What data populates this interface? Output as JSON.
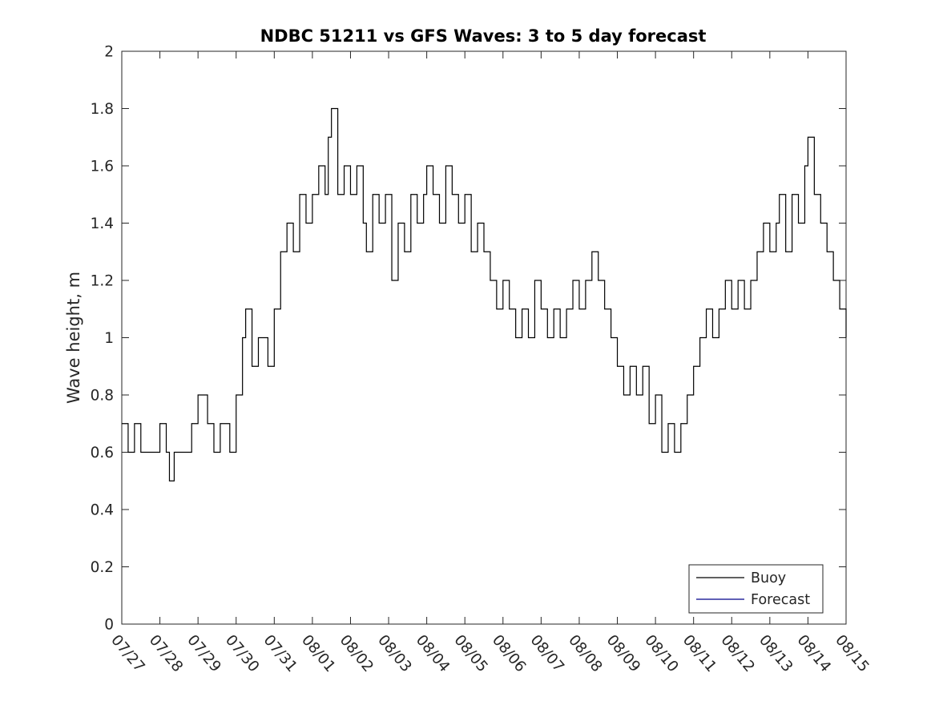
{
  "chart_data": {
    "type": "line",
    "title": "NDBC 51211 vs GFS Waves: 3 to 5 day forecast",
    "xlabel": "",
    "ylabel": "Wave height, m",
    "x_axis": {
      "type": "date",
      "range": [
        "07/27",
        "08/15"
      ],
      "tick_labels": [
        "07/27",
        "07/28",
        "07/29",
        "07/30",
        "07/31",
        "08/01",
        "08/02",
        "08/03",
        "08/04",
        "08/05",
        "08/06",
        "08/07",
        "08/08",
        "08/09",
        "08/10",
        "08/11",
        "08/12",
        "08/13",
        "08/14",
        "08/15"
      ]
    },
    "y_axis": {
      "range": [
        0,
        2
      ],
      "tick_values": [
        0,
        0.2,
        0.4,
        0.6,
        0.8,
        1,
        1.2,
        1.4,
        1.6,
        1.8,
        2
      ],
      "tick_labels": [
        "0",
        "0.2",
        "0.4",
        "0.6",
        "0.8",
        "1",
        "1.2",
        "1.4",
        "1.6",
        "1.8",
        "2"
      ]
    },
    "grid": false,
    "legend_position": "bottom-right",
    "series": [
      {
        "name": "Buoy",
        "color": "#000000",
        "points": [
          [
            "07/27 00:00",
            0.7
          ],
          [
            "07/27 04:00",
            0.6
          ],
          [
            "07/27 08:00",
            0.7
          ],
          [
            "07/27 12:00",
            0.6
          ],
          [
            "07/27 16:00",
            0.6
          ],
          [
            "07/27 20:00",
            0.6
          ],
          [
            "07/28 00:00",
            0.7
          ],
          [
            "07/28 04:00",
            0.6
          ],
          [
            "07/28 06:00",
            0.5
          ],
          [
            "07/28 09:00",
            0.6
          ],
          [
            "07/28 12:00",
            0.6
          ],
          [
            "07/28 16:00",
            0.6
          ],
          [
            "07/28 20:00",
            0.7
          ],
          [
            "07/29 00:00",
            0.8
          ],
          [
            "07/29 06:00",
            0.7
          ],
          [
            "07/29 10:00",
            0.6
          ],
          [
            "07/29 14:00",
            0.7
          ],
          [
            "07/29 20:00",
            0.6
          ],
          [
            "07/30 00:00",
            0.8
          ],
          [
            "07/30 04:00",
            1.0
          ],
          [
            "07/30 06:00",
            1.1
          ],
          [
            "07/30 10:00",
            0.9
          ],
          [
            "07/30 14:00",
            1.0
          ],
          [
            "07/30 20:00",
            0.9
          ],
          [
            "07/31 00:00",
            1.1
          ],
          [
            "07/31 04:00",
            1.3
          ],
          [
            "07/31 08:00",
            1.4
          ],
          [
            "07/31 12:00",
            1.3
          ],
          [
            "07/31 16:00",
            1.5
          ],
          [
            "07/31 20:00",
            1.4
          ],
          [
            "08/01 00:00",
            1.5
          ],
          [
            "08/01 04:00",
            1.6
          ],
          [
            "08/01 08:00",
            1.5
          ],
          [
            "08/01 10:00",
            1.7
          ],
          [
            "08/01 12:00",
            1.8
          ],
          [
            "08/01 16:00",
            1.5
          ],
          [
            "08/01 20:00",
            1.6
          ],
          [
            "08/02 00:00",
            1.5
          ],
          [
            "08/02 04:00",
            1.6
          ],
          [
            "08/02 08:00",
            1.4
          ],
          [
            "08/02 10:00",
            1.3
          ],
          [
            "08/02 14:00",
            1.5
          ],
          [
            "08/02 18:00",
            1.4
          ],
          [
            "08/02 22:00",
            1.5
          ],
          [
            "08/03 02:00",
            1.2
          ],
          [
            "08/03 06:00",
            1.4
          ],
          [
            "08/03 10:00",
            1.3
          ],
          [
            "08/03 14:00",
            1.5
          ],
          [
            "08/03 18:00",
            1.4
          ],
          [
            "08/03 22:00",
            1.5
          ],
          [
            "08/04 00:00",
            1.6
          ],
          [
            "08/04 04:00",
            1.5
          ],
          [
            "08/04 08:00",
            1.4
          ],
          [
            "08/04 12:00",
            1.6
          ],
          [
            "08/04 16:00",
            1.5
          ],
          [
            "08/04 20:00",
            1.4
          ],
          [
            "08/05 00:00",
            1.5
          ],
          [
            "08/05 04:00",
            1.3
          ],
          [
            "08/05 08:00",
            1.4
          ],
          [
            "08/05 12:00",
            1.3
          ],
          [
            "08/05 16:00",
            1.2
          ],
          [
            "08/05 20:00",
            1.1
          ],
          [
            "08/06 00:00",
            1.2
          ],
          [
            "08/06 04:00",
            1.1
          ],
          [
            "08/06 08:00",
            1.0
          ],
          [
            "08/06 12:00",
            1.1
          ],
          [
            "08/06 16:00",
            1.0
          ],
          [
            "08/06 20:00",
            1.2
          ],
          [
            "08/07 00:00",
            1.1
          ],
          [
            "08/07 04:00",
            1.0
          ],
          [
            "08/07 08:00",
            1.1
          ],
          [
            "08/07 12:00",
            1.0
          ],
          [
            "08/07 16:00",
            1.1
          ],
          [
            "08/07 20:00",
            1.2
          ],
          [
            "08/08 00:00",
            1.1
          ],
          [
            "08/08 04:00",
            1.2
          ],
          [
            "08/08 08:00",
            1.3
          ],
          [
            "08/08 12:00",
            1.2
          ],
          [
            "08/08 16:00",
            1.1
          ],
          [
            "08/08 20:00",
            1.0
          ],
          [
            "08/09 00:00",
            0.9
          ],
          [
            "08/09 04:00",
            0.8
          ],
          [
            "08/09 08:00",
            0.9
          ],
          [
            "08/09 12:00",
            0.8
          ],
          [
            "08/09 16:00",
            0.9
          ],
          [
            "08/09 20:00",
            0.7
          ],
          [
            "08/10 00:00",
            0.8
          ],
          [
            "08/10 04:00",
            0.6
          ],
          [
            "08/10 08:00",
            0.7
          ],
          [
            "08/10 12:00",
            0.6
          ],
          [
            "08/10 16:00",
            0.7
          ],
          [
            "08/10 20:00",
            0.8
          ],
          [
            "08/11 00:00",
            0.9
          ],
          [
            "08/11 04:00",
            1.0
          ],
          [
            "08/11 08:00",
            1.1
          ],
          [
            "08/11 12:00",
            1.0
          ],
          [
            "08/11 16:00",
            1.1
          ],
          [
            "08/11 20:00",
            1.2
          ],
          [
            "08/12 00:00",
            1.1
          ],
          [
            "08/12 04:00",
            1.2
          ],
          [
            "08/12 08:00",
            1.1
          ],
          [
            "08/12 12:00",
            1.2
          ],
          [
            "08/12 16:00",
            1.3
          ],
          [
            "08/12 20:00",
            1.4
          ],
          [
            "08/13 00:00",
            1.3
          ],
          [
            "08/13 04:00",
            1.4
          ],
          [
            "08/13 06:00",
            1.5
          ],
          [
            "08/13 10:00",
            1.3
          ],
          [
            "08/13 14:00",
            1.5
          ],
          [
            "08/13 18:00",
            1.4
          ],
          [
            "08/13 22:00",
            1.6
          ],
          [
            "08/14 00:00",
            1.7
          ],
          [
            "08/14 04:00",
            1.5
          ],
          [
            "08/14 08:00",
            1.4
          ],
          [
            "08/14 12:00",
            1.3
          ],
          [
            "08/14 16:00",
            1.2
          ],
          [
            "08/14 20:00",
            1.1
          ],
          [
            "08/15 00:00",
            1.0
          ]
        ]
      },
      {
        "name": "Forecast",
        "color": "#00008b",
        "points": []
      }
    ]
  }
}
